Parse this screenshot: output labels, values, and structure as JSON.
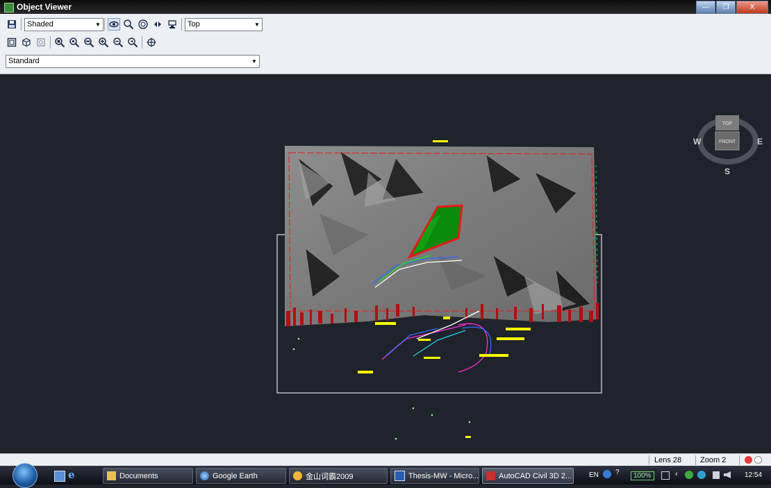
{
  "window": {
    "title": "Object Viewer",
    "controls": {
      "minimize": "—",
      "restore": "❐",
      "close": "X"
    }
  },
  "toolbar": {
    "shading_combo": {
      "value": "Shaded"
    },
    "view_combo": {
      "value": "Top"
    },
    "style_combo": {
      "value": "Standard"
    }
  },
  "viewcube": {
    "top_label": "TOP",
    "front_label": "FRONT",
    "west": "W",
    "east": "E",
    "south": "S"
  },
  "scene": {
    "surface_color": "#808080",
    "boundary_color": "#e31b1b",
    "polygon_color": "#0b8a0b",
    "highlight_color": "#ffff00"
  },
  "statusbar": {
    "lens": "Lens 28",
    "zoom": "Zoom 2"
  },
  "taskbar": {
    "tasks": [
      {
        "label": "Documents"
      },
      {
        "label": "Google Earth"
      },
      {
        "label": "金山词霸2009"
      },
      {
        "label": "Thesis-MW - Micro..."
      },
      {
        "label": "AutoCAD Civil 3D 2..."
      }
    ],
    "tray": {
      "lang": "EN",
      "battery": "100%",
      "clock": "12:54"
    }
  }
}
